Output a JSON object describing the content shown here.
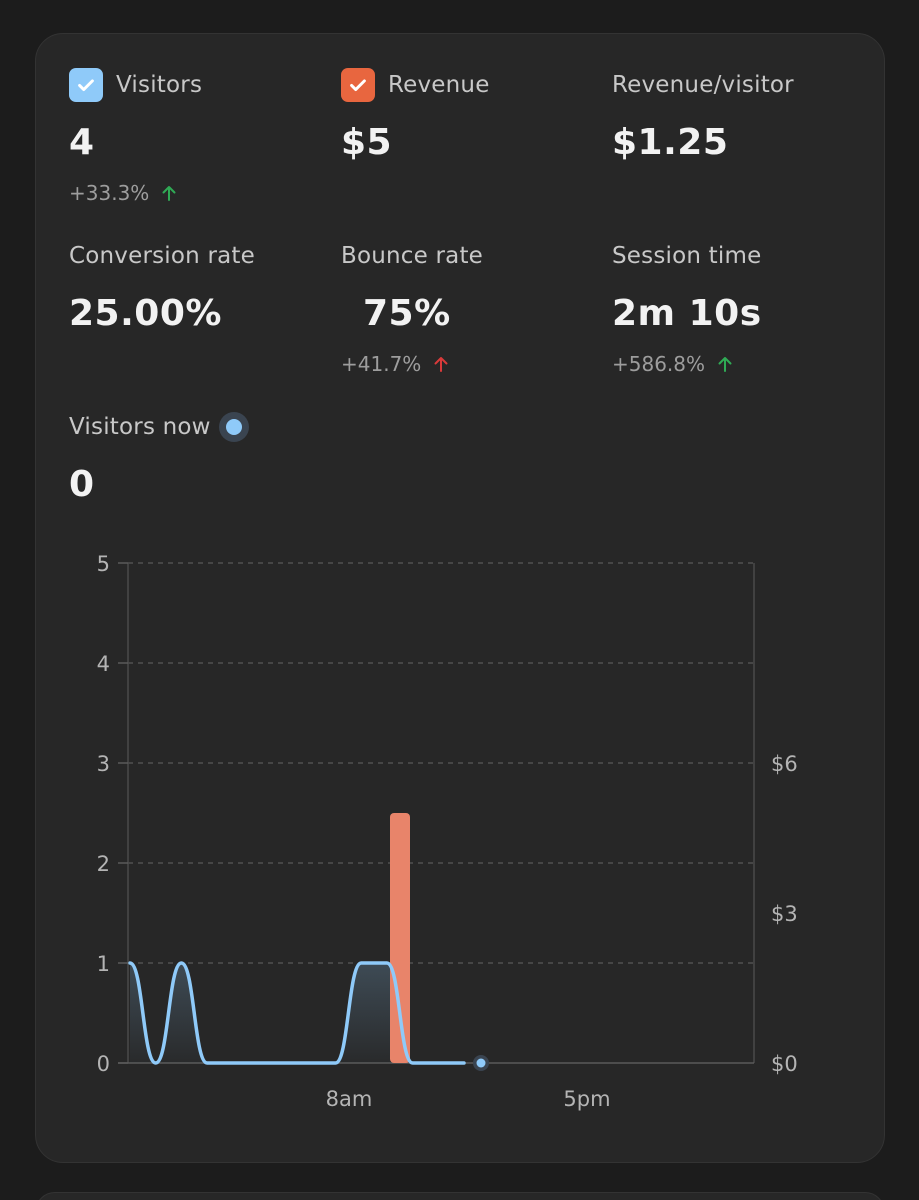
{
  "metrics": {
    "visitors": {
      "label": "Visitors",
      "value": "4",
      "change": "+33.3%",
      "trend": "up",
      "checked": true
    },
    "revenue": {
      "label": "Revenue",
      "value": "$5",
      "checked": true
    },
    "revenue_per_visitor": {
      "label": "Revenue/visitor",
      "value": "$1.25"
    },
    "conversion_rate": {
      "label": "Conversion rate",
      "value": "25.00%"
    },
    "bounce_rate": {
      "label": "Bounce rate",
      "value": "75%",
      "change": "+41.7%",
      "trend": "up"
    },
    "session_time": {
      "label": "Session time",
      "value": "2m 10s",
      "change": "+586.8%",
      "trend": "up"
    },
    "visitors_now": {
      "label": "Visitors now",
      "value": "0"
    }
  },
  "colors": {
    "visitors": "#8fcaf9",
    "revenue": "#e8846a",
    "revenue_checkbox": "#e8663f",
    "trend_good": "#2faa55",
    "trend_bad": "#d93a3a"
  },
  "chart_data": {
    "type": "line",
    "title": "",
    "xlabel": "",
    "ylabel": "",
    "x_tick_labels": [
      "8am",
      "5pm"
    ],
    "y_left": {
      "ticks": [
        "0",
        "1",
        "2",
        "3",
        "4",
        "5"
      ],
      "range": [
        0,
        5
      ]
    },
    "y_right": {
      "ticks": [
        "$0",
        "$3",
        "$6"
      ],
      "range": [
        0,
        10
      ]
    },
    "grid": true,
    "series": [
      {
        "name": "Visitors",
        "type": "area",
        "axis": "left",
        "x": [
          0,
          1,
          2,
          3,
          4,
          5,
          6,
          7,
          8,
          9,
          10,
          11,
          12,
          13
        ],
        "values": [
          1,
          0,
          1,
          0,
          0,
          0,
          0,
          0,
          0,
          1,
          1,
          0,
          0,
          0
        ]
      },
      {
        "name": "Revenue",
        "type": "bar",
        "axis": "right",
        "x": [
          10
        ],
        "values": [
          5
        ]
      }
    ],
    "current_point": {
      "x": 13.5,
      "value": 0
    }
  }
}
